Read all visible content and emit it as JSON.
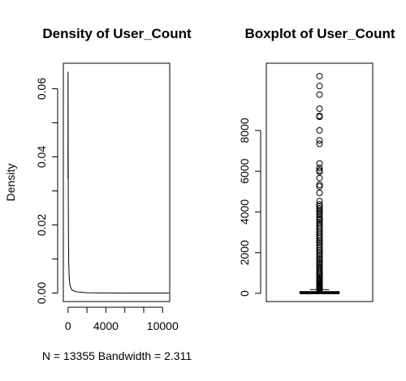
{
  "chart_data": [
    {
      "type": "line",
      "title": "Density of User_Count",
      "xlabel": "N = 13355   Bandwidth = 2.311",
      "ylabel": "Density",
      "xlim": [
        -500,
        10750
      ],
      "ylim": [
        -0.0025,
        0.0675
      ],
      "x_ticks": [
        0,
        4000,
        10000
      ],
      "x_tick_marks": [
        0,
        2000,
        4000,
        6000,
        8000,
        10000
      ],
      "y_ticks": [
        0.0,
        0.02,
        0.04,
        0.06
      ],
      "y_tick_marks": [
        0.0,
        0.01,
        0.02,
        0.03,
        0.04,
        0.05,
        0.06
      ],
      "y_tick_labels": [
        "0.00",
        "0.02",
        "0.04",
        "0.06"
      ],
      "x": [
        -7,
        -3,
        0,
        2,
        4,
        6,
        10,
        15,
        25,
        40,
        70,
        120,
        200,
        400,
        800,
        2000,
        4000,
        7000,
        10665
      ],
      "y": [
        0.0335,
        0.06,
        0.065,
        0.0645,
        0.063,
        0.058,
        0.049,
        0.04,
        0.027,
        0.017,
        0.009,
        0.0045,
        0.0022,
        0.0009,
        0.0004,
        0.0001,
        3e-05,
        1e-05,
        0.0
      ]
    },
    {
      "type": "box",
      "title": "Boxplot of User_Count",
      "xlabel": "",
      "ylabel": "",
      "ylim": [
        -400,
        11300
      ],
      "y_ticks": [
        0,
        2000,
        4000,
        6000,
        8000
      ],
      "box": {
        "min": 4,
        "q1": 10,
        "median": 24,
        "q3": 81,
        "max": 187
      },
      "outliers": [
        10665,
        10179,
        9759,
        9069,
        8713,
        8669,
        8003,
        7512,
        7340,
        6379,
        6158,
        6043,
        5975,
        5666,
        5337,
        5252,
        4935,
        4529,
        4372,
        4282,
        4183,
        4086,
        4023,
        3955,
        3872,
        3755,
        3651,
        3585,
        3510,
        3431,
        3336,
        3239,
        3159,
        3066,
        2986,
        2893,
        2797,
        2716,
        2622,
        2540,
        2466,
        2375,
        2285,
        2200,
        2111,
        2032,
        1943,
        1862,
        1773,
        1697,
        1618,
        1534,
        1457,
        1378,
        1303,
        1232,
        1155,
        1088,
        1017,
        956,
        893,
        829,
        769,
        710,
        656,
        603,
        553,
        506,
        462,
        421,
        383,
        348,
        316,
        287,
        260,
        235,
        212,
        192
      ]
    }
  ]
}
